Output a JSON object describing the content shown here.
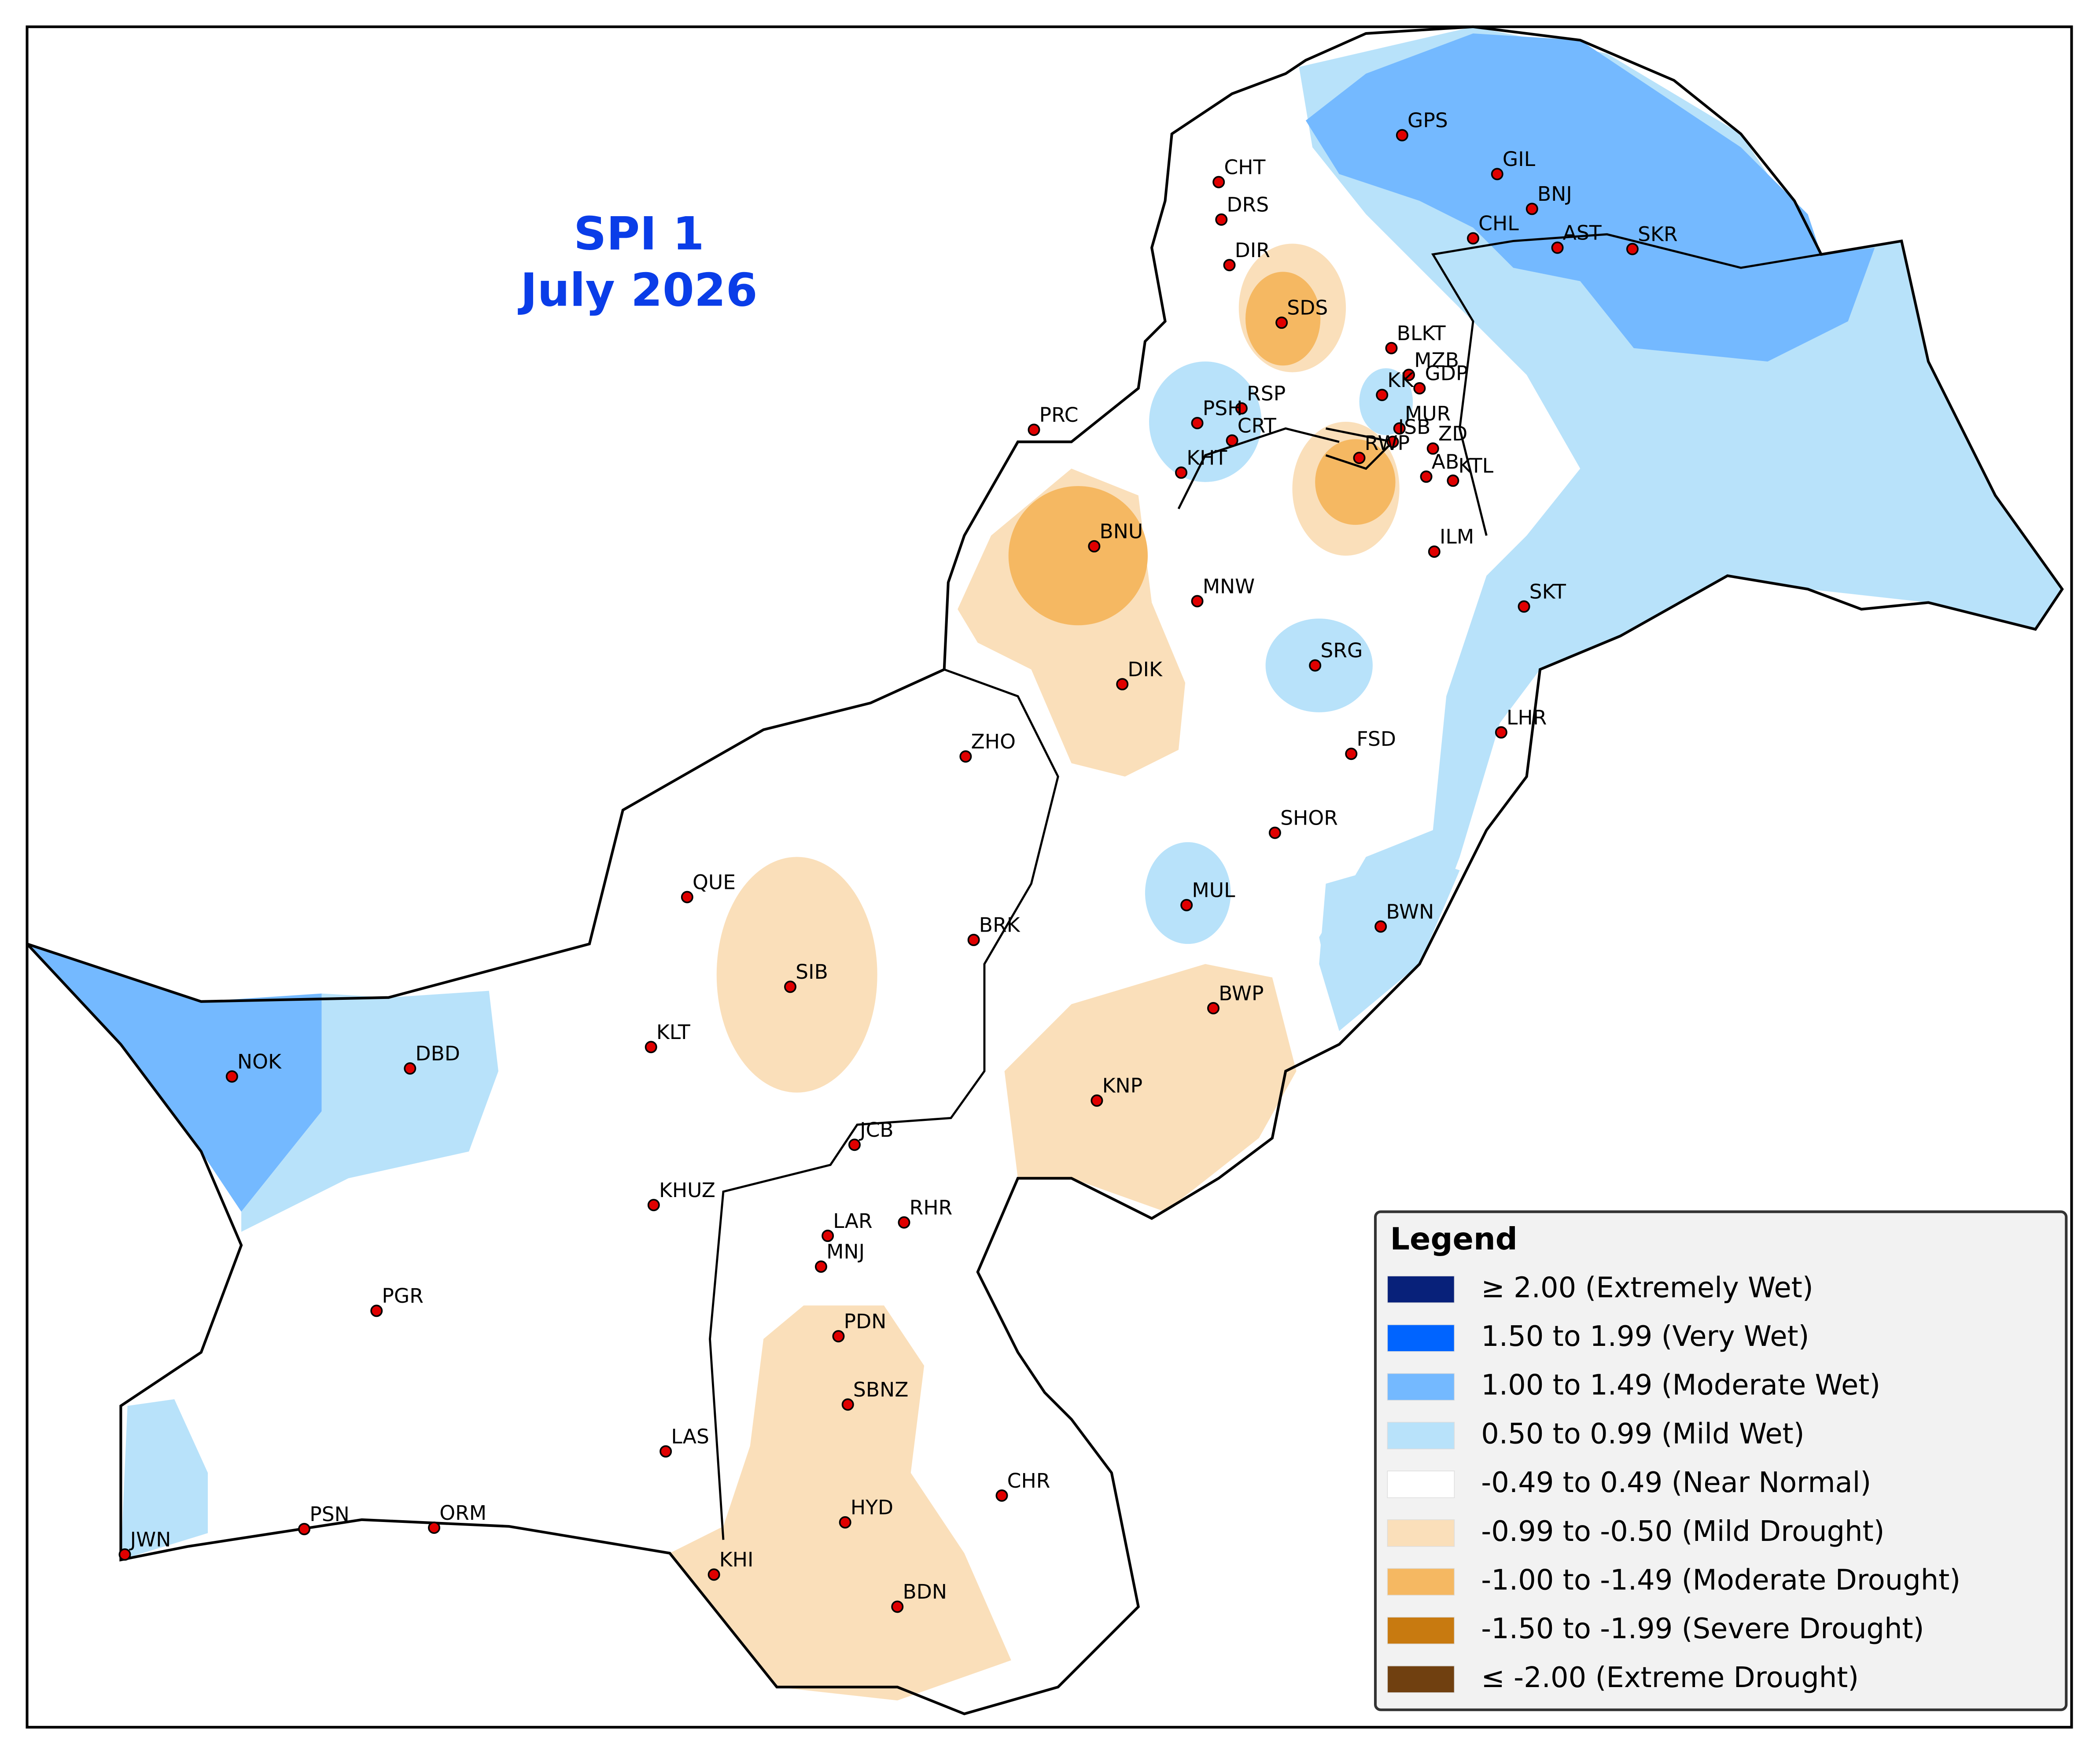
{
  "header": {
    "title": "SPI 1",
    "subtitle": "July 2026"
  },
  "stations": [
    "GPS",
    "GIL",
    "BNJ",
    "CHL",
    "AST",
    "SKR",
    "CHT",
    "DRS",
    "DIR",
    "SDS",
    "BLKT",
    "MZB",
    "KK",
    "GDP",
    "RSP",
    "PSH",
    "MUR",
    "CRT",
    "ISB",
    "ZD",
    "AB",
    "KTL",
    "PRC",
    "KHT",
    "RWP",
    "BNU",
    "ILM",
    "MNW",
    "SKT",
    "SRG",
    "DIK",
    "LHR",
    "ZHO",
    "FSD",
    "SHOR",
    "QUE",
    "MUL",
    "BRK",
    "BWN",
    "SIB",
    "BWP",
    "KLT",
    "NOK",
    "DBD",
    "KNP",
    "JCB",
    "KHUZ",
    "LAR",
    "RHR",
    "MNJ",
    "PGR",
    "PDN",
    "SBNZ",
    "LAS",
    "CHR",
    "HYD",
    "PSN",
    "ORM",
    "JWN",
    "KHI",
    "BDN"
  ],
  "legend": {
    "title": "Legend",
    "items": [
      {
        "label": "≥ 2.00 (Extremely Wet)",
        "color": "#08217a"
      },
      {
        "label": "1.50 to 1.99 (Very Wet)",
        "color": "#0064ff"
      },
      {
        "label": "1.00 to 1.49 (Moderate Wet)",
        "color": "#74b9ff"
      },
      {
        "label": "0.50 to 0.99 (Mild Wet)",
        "color": "#b8e2fa"
      },
      {
        "label": "-0.49 to 0.49 (Near Normal)",
        "color": "#ffffff"
      },
      {
        "label": "-0.99 to -0.50 (Mild Drought)",
        "color": "#fadfba"
      },
      {
        "label": "-1.00 to -1.49 (Moderate Drought)",
        "color": "#f5b862"
      },
      {
        "label": "-1.50 to -1.99 (Severe Drought)",
        "color": "#c87a10"
      },
      {
        "label": "≤ -2.00 (Extreme Drought)",
        "color": "#704010"
      }
    ]
  }
}
